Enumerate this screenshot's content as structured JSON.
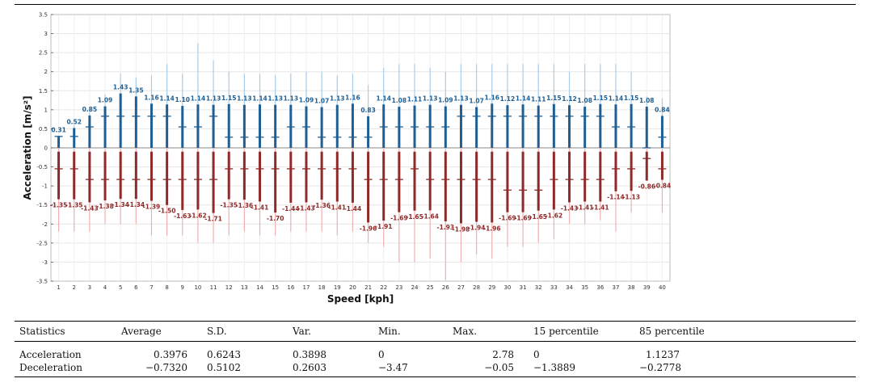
{
  "chart_data": {
    "type": "bar",
    "title": "",
    "xlabel": "Speed [kph]",
    "ylabel": "Acceleration [m/s²]",
    "xlim": [
      0.5,
      40.5
    ],
    "ylim": [
      -3.5,
      3.5
    ],
    "yticks": [
      3.5,
      3,
      2.5,
      2,
      1.5,
      1,
      0.5,
      0,
      -0.5,
      -1,
      -1.5,
      -2,
      -2.5,
      -3,
      -3.5
    ],
    "yticklabels": [
      "3.5",
      "3",
      "2.5",
      "2",
      "1.5",
      "1",
      "0.5",
      "0",
      "-0.5",
      "-1",
      "-1.5",
      "-2",
      "-2.5",
      "-3",
      "-3.5"
    ],
    "categories": [
      "1",
      "2",
      "3",
      "4",
      "5",
      "6",
      "7",
      "8",
      "9",
      "10",
      "11",
      "12",
      "13",
      "14",
      "15",
      "16",
      "17",
      "18",
      "19",
      "20",
      "21",
      "22",
      "23",
      "24",
      "25",
      "26",
      "27",
      "28",
      "29",
      "30",
      "31",
      "32",
      "33",
      "34",
      "35",
      "36",
      "37",
      "38",
      "39",
      "40"
    ],
    "series": [
      {
        "name": "Acceleration",
        "color": "#1f5f93",
        "light_color": "#a9cde9",
        "labels": [
          "0.31",
          "0.52",
          "0.85",
          "1.09",
          "1.43",
          "1.35",
          "1.16",
          "1.14",
          "1.10",
          "1.14",
          "1.13",
          "1.15",
          "1.13",
          "1.14",
          "1.13",
          "1.13",
          "1.09",
          "1.07",
          "1.13",
          "1.16",
          "0.83",
          "1.14",
          "1.08",
          "1.11",
          "1.13",
          "1.09",
          "1.13",
          "1.07",
          "1.16",
          "1.12",
          "1.14",
          "1.11",
          "1.15",
          "1.12",
          "1.08",
          "1.15",
          "1.14",
          "1.15",
          "1.08",
          "0.84"
        ],
        "values": [
          0.31,
          0.52,
          0.85,
          1.09,
          1.43,
          1.35,
          1.16,
          1.14,
          1.1,
          1.14,
          1.13,
          1.15,
          1.13,
          1.14,
          1.13,
          1.13,
          1.09,
          1.07,
          1.13,
          1.16,
          0.83,
          1.14,
          1.08,
          1.11,
          1.13,
          1.09,
          1.13,
          1.07,
          1.16,
          1.12,
          1.14,
          1.11,
          1.15,
          1.12,
          1.08,
          1.15,
          1.14,
          1.15,
          1.08,
          0.84
        ],
        "median": [
          0.3,
          0.3,
          0.55,
          0.83,
          0.83,
          0.83,
          0.83,
          0.83,
          0.55,
          0.55,
          0.83,
          0.28,
          0.28,
          0.28,
          0.28,
          0.55,
          0.55,
          0.28,
          0.28,
          0.28,
          0.28,
          0.55,
          0.55,
          0.55,
          0.55,
          0.55,
          0.83,
          0.83,
          0.83,
          0.83,
          0.83,
          0.83,
          0.83,
          0.83,
          0.83,
          0.83,
          0.55,
          0.55,
          0,
          0.28
        ],
        "whisker_max": [
          0.31,
          0.6,
          1.0,
          1.4,
          1.95,
          1.85,
          1.9,
          2.2,
          1.95,
          2.75,
          2.3,
          2.0,
          1.95,
          1.95,
          1.9,
          1.95,
          2.0,
          2.0,
          1.9,
          1.95,
          1.65,
          2.1,
          2.2,
          2.2,
          2.1,
          2.0,
          2.2,
          2.2,
          2.2,
          2.2,
          2.2,
          2.2,
          2.2,
          2.0,
          2.2,
          2.2,
          2.2,
          2.0,
          1.35,
          1.3
        ]
      },
      {
        "name": "Deceleration",
        "color": "#8f2a2a",
        "light_color": "#f0b0b0",
        "labels": [
          "-1.35",
          "-1.35",
          "-1.43",
          "-1.38",
          "-1.34",
          "-1.34",
          "-1.39",
          "-1.50",
          "-1.63",
          "-1.62",
          "-1.71",
          "-1.35",
          "-1.36",
          "-1.41",
          "-1.70",
          "-1.44",
          "-1.43",
          "-1.36",
          "-1.41",
          "-1.44",
          "-1.96",
          "-1.91",
          "-1.69",
          "-1.65",
          "-1.64",
          "-1.93",
          "-1.98",
          "-1.94",
          "-1.96",
          "-1.69",
          "-1.69",
          "-1.65",
          "-1.62",
          "-1.43",
          "-1.41",
          "-1.41",
          "-1.14",
          "-1.13",
          "-0.86",
          "-0.84"
        ],
        "values": [
          -1.35,
          -1.35,
          -1.43,
          -1.38,
          -1.34,
          -1.34,
          -1.39,
          -1.5,
          -1.63,
          -1.62,
          -1.71,
          -1.35,
          -1.36,
          -1.41,
          -1.7,
          -1.44,
          -1.43,
          -1.36,
          -1.41,
          -1.44,
          -1.96,
          -1.91,
          -1.69,
          -1.65,
          -1.64,
          -1.93,
          -1.98,
          -1.94,
          -1.96,
          -1.69,
          -1.69,
          -1.65,
          -1.62,
          -1.43,
          -1.41,
          -1.41,
          -1.14,
          -1.13,
          -0.86,
          -0.84
        ],
        "median": [
          -0.55,
          -0.55,
          -0.83,
          -0.83,
          -0.83,
          -0.83,
          -0.83,
          -0.83,
          -0.83,
          -0.83,
          -0.83,
          -0.55,
          -0.55,
          -0.55,
          -0.55,
          -0.55,
          -0.55,
          -0.55,
          -0.55,
          -0.55,
          -0.83,
          -0.83,
          -0.83,
          -0.55,
          -0.83,
          -0.83,
          -0.83,
          -0.83,
          -0.83,
          -1.11,
          -1.11,
          -1.11,
          -0.83,
          -0.83,
          -0.83,
          -0.83,
          -0.55,
          -0.55,
          -0.28,
          -0.55
        ],
        "whisker_min": [
          -2.2,
          -2.2,
          -2.2,
          -2.0,
          -2.0,
          -2.0,
          -2.3,
          -2.3,
          -2.3,
          -2.5,
          -2.5,
          -2.3,
          -2.2,
          -2.3,
          -2.3,
          -2.2,
          -2.2,
          -2.2,
          -2.3,
          -2.2,
          -2.5,
          -2.6,
          -3.0,
          -3.0,
          -2.9,
          -3.47,
          -3.0,
          -2.8,
          -2.9,
          -2.6,
          -2.6,
          -2.5,
          -2.4,
          -2.0,
          -2.0,
          -1.9,
          -2.2,
          -1.7,
          -0.5,
          -1.7
        ]
      }
    ]
  },
  "table": {
    "headers": [
      "Statistics",
      "Average",
      "S.D.",
      "Var.",
      "Min.",
      "Max.",
      "15 percentile",
      "85 percentile"
    ],
    "rows": [
      [
        "Acceleration",
        "0.3976",
        "0.6243",
        "0.3898",
        "0",
        "2.78",
        "0",
        "1.1237"
      ],
      [
        "Deceleration",
        "−0.7320",
        "0.5102",
        "0.2603",
        "−3.47",
        "−0.05",
        "−1.3889",
        "−0.2778"
      ]
    ]
  }
}
